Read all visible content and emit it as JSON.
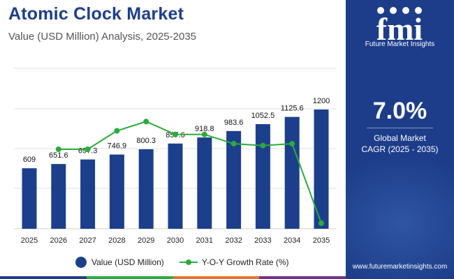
{
  "header": {
    "title": "Atomic Clock Market",
    "subtitle": "Value (USD Million) Analysis, 2025-2035"
  },
  "colors": {
    "bar": "#1c3f8c",
    "line": "#2bab3b",
    "panel": "#1d3d8a",
    "title": "#1c3f8c",
    "footer_strip": [
      "#1d3d8a",
      "#2bab3b",
      "#e8742c",
      "#7b2e8e"
    ]
  },
  "chart_data": {
    "type": "bar",
    "title": "Atomic Clock Market",
    "subtitle": "Value (USD Million) Analysis, 2025-2035",
    "categories": [
      "2025",
      "2026",
      "2027",
      "2028",
      "2029",
      "2030",
      "2031",
      "2032",
      "2033",
      "2034",
      "2035"
    ],
    "series": [
      {
        "name": "Value (USD Million)",
        "type": "bar",
        "values": [
          609,
          651.6,
          697.3,
          746.9,
          800.3,
          857.6,
          918.8,
          983.6,
          1052.5,
          1125.6,
          1200
        ],
        "labels": [
          "609",
          "651.6",
          "697.3",
          "746.9",
          "800.3",
          "857.6",
          "918.8",
          "983.6",
          "1052.5",
          "1125.6",
          "1200"
        ]
      },
      {
        "name": "Y-O-Y Growth Rate (%)",
        "type": "line",
        "values": [
          null,
          7.0,
          7.0,
          7.1,
          7.15,
          7.08,
          7.08,
          7.03,
          7.02,
          7.03,
          6.6
        ]
      }
    ],
    "ylim": [
      0,
      1200
    ],
    "line_ylim": [
      6.6,
      7.2
    ],
    "grid": true,
    "legend": "bottom"
  },
  "legend": {
    "bar_label": "Value (USD Million)",
    "line_label": "Y-O-Y Growth Rate (%)"
  },
  "side_panel": {
    "logo_text": "fmi",
    "logo_sub": "Future Market Insights",
    "cagr_value": "7.0%",
    "cagr_label_line1": "Global Market",
    "cagr_label_line2": "CAGR (2025 - 2035)",
    "website": "www.futuremarketinsights.com"
  }
}
